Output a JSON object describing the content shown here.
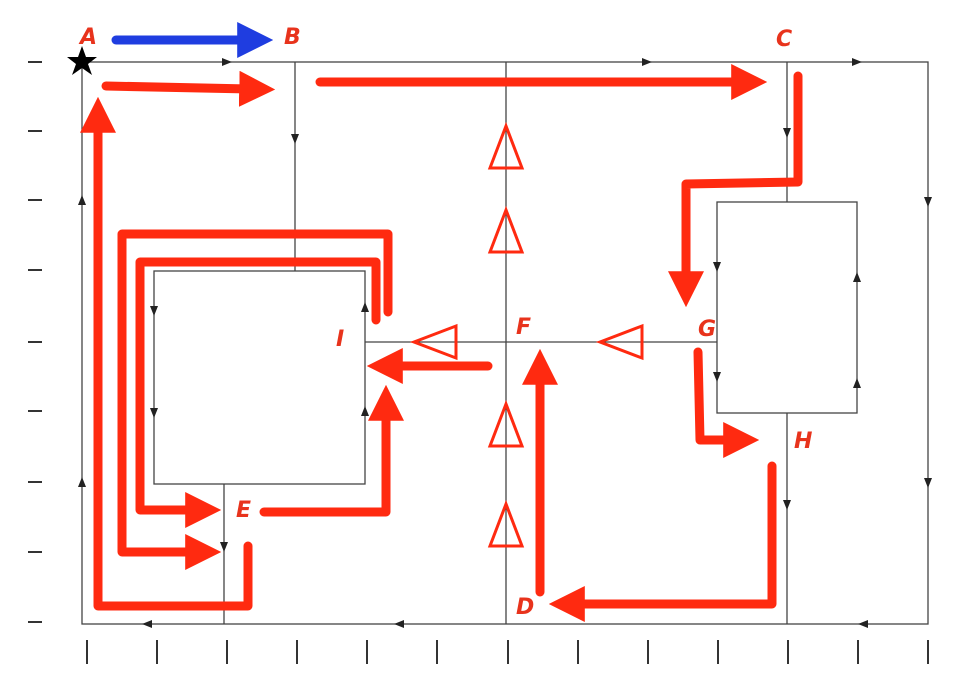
{
  "colors": {
    "accent": "#ff2a10",
    "blue": "#1f3de0",
    "graph": "#444444",
    "label": "#e8331c",
    "star": "#000000"
  },
  "labels": {
    "a": "A",
    "b": "B",
    "c": "C",
    "d": "D",
    "e": "E",
    "f": "F",
    "g": "G",
    "h": "H",
    "i": "I"
  },
  "icons": {
    "start": "star-icon"
  }
}
